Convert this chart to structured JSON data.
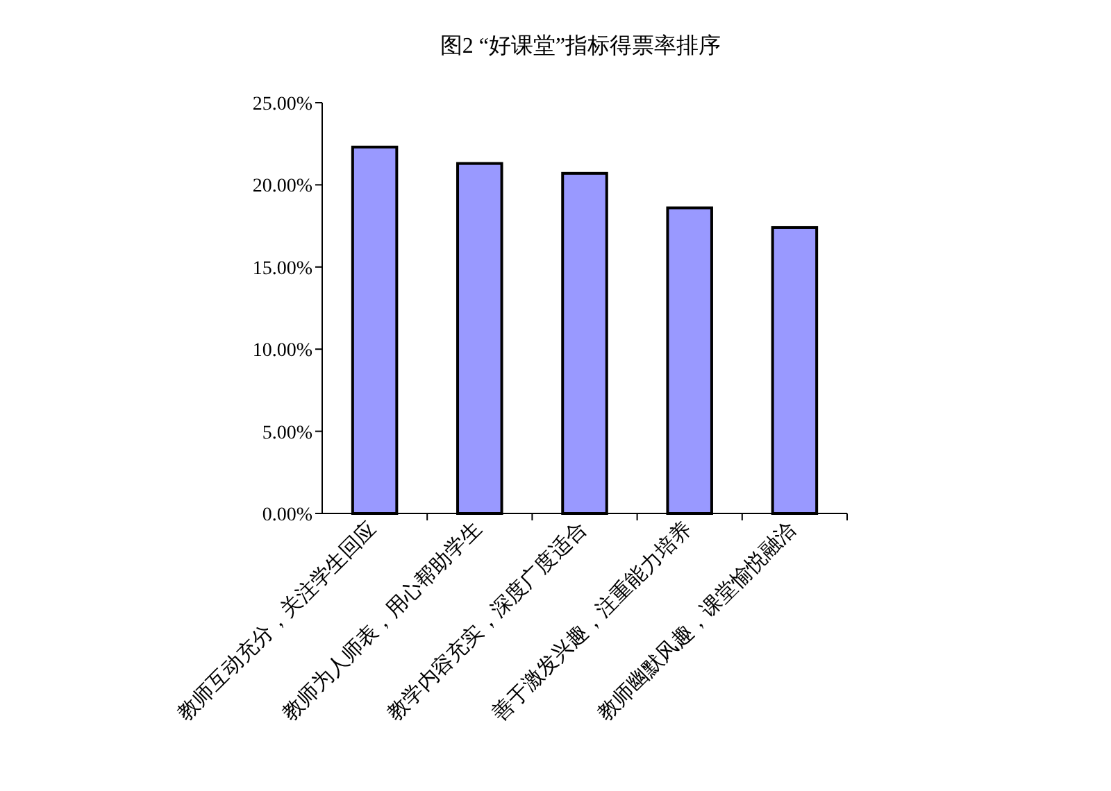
{
  "chart_data": {
    "type": "bar",
    "title": "图2 “好课堂”指标得票率排序",
    "categories": [
      "教师互动充分，关注学生回应",
      "教师为人师表，用心帮助学生",
      "教学内容充实，深度广度适合",
      "善于激发兴趣，注重能力培养",
      "教师幽默风趣，课堂愉悦融洽"
    ],
    "values": [
      22.3,
      21.3,
      20.7,
      18.6,
      17.4
    ],
    "color": "#9999ff",
    "ylim": [
      0,
      25
    ],
    "yticks": [
      {
        "value": 0,
        "label": "0.00%"
      },
      {
        "value": 5,
        "label": "5.00%"
      },
      {
        "value": 10,
        "label": "10.00%"
      },
      {
        "value": 15,
        "label": "15.00%"
      },
      {
        "value": 20,
        "label": "20.00%"
      },
      {
        "value": 25,
        "label": "25.00%"
      }
    ]
  }
}
